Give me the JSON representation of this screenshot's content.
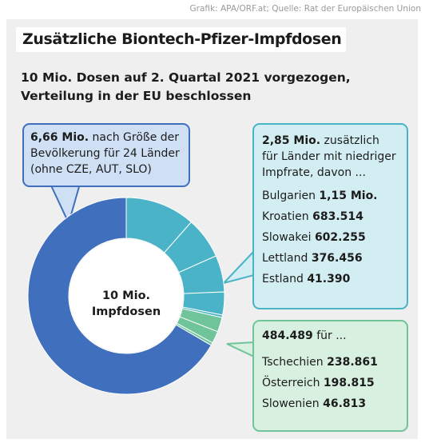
{
  "source": "Grafik: APA/ORF.at; Quelle: Rat der Europäischen Union",
  "title": "Zusätzliche Biontech-Pfizer-Impfdosen",
  "subtitle": [
    "10 Mio. Dosen auf 2. Quartal 2021 vorgezogen,",
    "Verteilung in der EU beschlossen"
  ],
  "center_label": [
    "10 Mio.",
    "Impfdosen"
  ],
  "callouts": {
    "population": {
      "value": "6,66 Mio.",
      "text": [
        "nach Größe der",
        "Bevölkerung für 24 Länder",
        "(ohne CZE, AUT, SLO)"
      ]
    },
    "low_rate": {
      "value": "2,85 Mio.",
      "text": [
        "zusätzlich",
        "für Länder mit niedriger",
        "Impfrate, davon ..."
      ],
      "countries": [
        {
          "name": "Bulgarien",
          "value": "1,15 Mio."
        },
        {
          "name": "Kroatien",
          "value": "683.514"
        },
        {
          "name": "Slowakei",
          "value": "602.255"
        },
        {
          "name": "Lettland",
          "value": "376.456"
        },
        {
          "name": "Estland",
          "value": "41.390"
        }
      ]
    },
    "czsi": {
      "value": "484.489",
      "text": "für ...",
      "countries": [
        {
          "name": "Tschechien",
          "value": "238.861"
        },
        {
          "name": "Österreich",
          "value": "198.815"
        },
        {
          "name": "Slowenien",
          "value": "46.813"
        }
      ]
    }
  },
  "colors": {
    "blue": "#3f6fbd",
    "teal": "#4bb3c7",
    "green": "#6fc49a",
    "panel": "#efefef"
  },
  "chart_data": {
    "type": "pie",
    "donut": true,
    "total": 10000000,
    "slices": [
      {
        "label": "Bulgarien",
        "value": 1150000,
        "color": "#4bb3c7"
      },
      {
        "label": "Kroatien",
        "value": 683514,
        "color": "#4bb3c7"
      },
      {
        "label": "Slowakei",
        "value": 602255,
        "color": "#4bb3c7"
      },
      {
        "label": "Lettland",
        "value": 376456,
        "color": "#4bb3c7"
      },
      {
        "label": "Estland",
        "value": 41390,
        "color": "#4bb3c7"
      },
      {
        "label": "Tschechien",
        "value": 238861,
        "color": "#6fc49a"
      },
      {
        "label": "Österreich",
        "value": 198815,
        "color": "#6fc49a"
      },
      {
        "label": "Slowenien",
        "value": 46813,
        "color": "#6fc49a"
      },
      {
        "label": "24 Länder (Bevölkerung)",
        "value": 6660000,
        "color": "#3f6fbd"
      }
    ]
  }
}
